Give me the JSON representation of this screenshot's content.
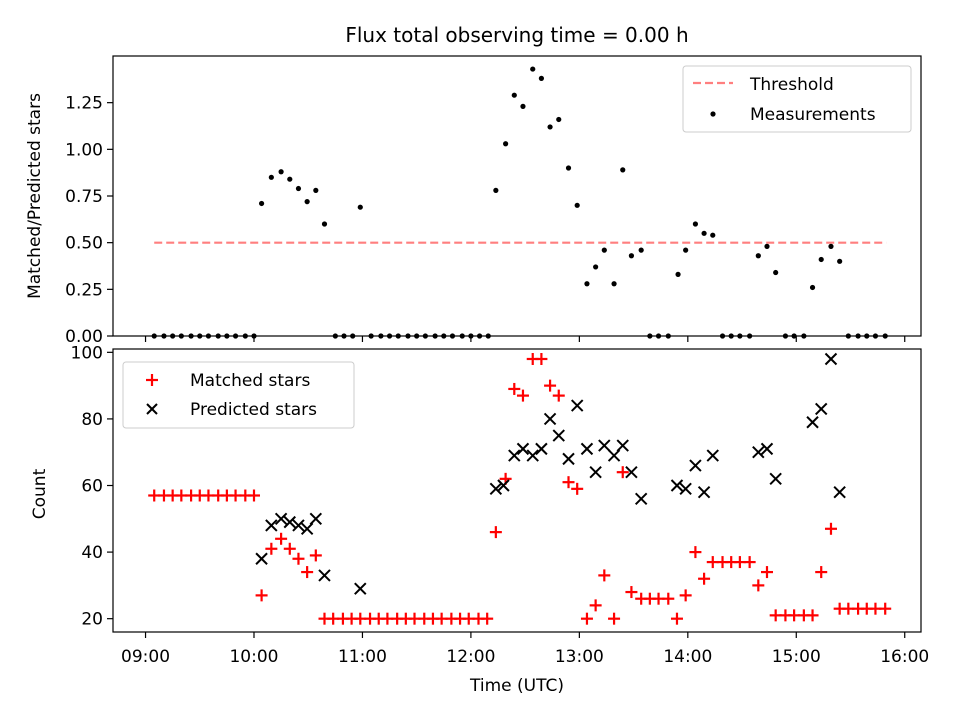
{
  "chart_data": [
    {
      "type": "scatter",
      "title": "Flux total observing time = 0.00 h",
      "ylabel": "Matched/Predicted stars",
      "xlabel": "",
      "xlim": [
        8.7,
        16.15
      ],
      "ylim": [
        0,
        1.5
      ],
      "yticks": [
        0.0,
        0.25,
        0.5,
        0.75,
        1.0,
        1.25
      ],
      "ytick_labels": [
        "0.00",
        "0.25",
        "0.50",
        "0.75",
        "1.00",
        "1.25"
      ],
      "threshold": {
        "name": "Threshold",
        "value": 0.5,
        "x": [
          9.08,
          15.83
        ],
        "color": "#ff7f7f"
      },
      "legend": {
        "location": "upper right",
        "entries": [
          "Threshold",
          "Measurements"
        ]
      },
      "series": [
        {
          "name": "Measurements",
          "color": "#000000",
          "marker": "dot",
          "points": [
            [
              9.08,
              0
            ],
            [
              9.17,
              0
            ],
            [
              9.25,
              0
            ],
            [
              9.33,
              0
            ],
            [
              9.42,
              0
            ],
            [
              9.5,
              0
            ],
            [
              9.58,
              0
            ],
            [
              9.67,
              0
            ],
            [
              9.75,
              0
            ],
            [
              9.83,
              0
            ],
            [
              9.92,
              0
            ],
            [
              10.0,
              0
            ],
            [
              10.07,
              0.71
            ],
            [
              10.16,
              0.85
            ],
            [
              10.25,
              0.88
            ],
            [
              10.33,
              0.84
            ],
            [
              10.41,
              0.79
            ],
            [
              10.49,
              0.72
            ],
            [
              10.57,
              0.78
            ],
            [
              10.65,
              0.6
            ],
            [
              10.75,
              0
            ],
            [
              10.83,
              0
            ],
            [
              10.91,
              0
            ],
            [
              10.98,
              0.69
            ],
            [
              11.08,
              0
            ],
            [
              11.17,
              0
            ],
            [
              11.25,
              0
            ],
            [
              11.33,
              0
            ],
            [
              11.42,
              0
            ],
            [
              11.5,
              0
            ],
            [
              11.58,
              0
            ],
            [
              11.67,
              0
            ],
            [
              11.75,
              0
            ],
            [
              11.83,
              0
            ],
            [
              11.92,
              0
            ],
            [
              12.0,
              0
            ],
            [
              12.08,
              0
            ],
            [
              12.16,
              0
            ],
            [
              12.23,
              0.78
            ],
            [
              12.32,
              1.03
            ],
            [
              12.4,
              1.29
            ],
            [
              12.48,
              1.23
            ],
            [
              12.57,
              1.43
            ],
            [
              12.65,
              1.38
            ],
            [
              12.73,
              1.12
            ],
            [
              12.81,
              1.16
            ],
            [
              12.9,
              0.9
            ],
            [
              12.98,
              0.7
            ],
            [
              13.07,
              0.28
            ],
            [
              13.15,
              0.37
            ],
            [
              13.23,
              0.46
            ],
            [
              13.32,
              0.28
            ],
            [
              13.4,
              0.89
            ],
            [
              13.48,
              0.43
            ],
            [
              13.57,
              0.46
            ],
            [
              13.65,
              0
            ],
            [
              13.73,
              0
            ],
            [
              13.82,
              0
            ],
            [
              13.91,
              0.33
            ],
            [
              13.98,
              0.46
            ],
            [
              14.07,
              0.6
            ],
            [
              14.15,
              0.55
            ],
            [
              14.23,
              0.54
            ],
            [
              14.32,
              0
            ],
            [
              14.4,
              0
            ],
            [
              14.48,
              0
            ],
            [
              14.57,
              0
            ],
            [
              14.65,
              0.43
            ],
            [
              14.73,
              0.48
            ],
            [
              14.81,
              0.34
            ],
            [
              14.9,
              0
            ],
            [
              14.98,
              0
            ],
            [
              15.07,
              0
            ],
            [
              15.15,
              0.26
            ],
            [
              15.23,
              0.41
            ],
            [
              15.32,
              0.48
            ],
            [
              15.4,
              0.4
            ],
            [
              15.48,
              0
            ],
            [
              15.57,
              0
            ],
            [
              15.65,
              0
            ],
            [
              15.73,
              0
            ],
            [
              15.82,
              0
            ]
          ]
        }
      ]
    },
    {
      "type": "scatter",
      "title": "",
      "xlabel": "Time (UTC)",
      "ylabel": "Count",
      "xlim": [
        8.7,
        16.15
      ],
      "ylim": [
        16,
        101
      ],
      "xticks": [
        9,
        10,
        11,
        12,
        13,
        14,
        15,
        16
      ],
      "xtick_labels": [
        "09:00",
        "10:00",
        "11:00",
        "12:00",
        "13:00",
        "14:00",
        "15:00",
        "16:00"
      ],
      "yticks": [
        20,
        40,
        60,
        80,
        100
      ],
      "ytick_labels": [
        "20",
        "40",
        "60",
        "80",
        "100"
      ],
      "legend": {
        "location": "upper left",
        "entries": [
          "Matched stars",
          "Predicted stars"
        ]
      },
      "series": [
        {
          "name": "Matched stars",
          "color": "#ff0000",
          "marker": "plus",
          "points": [
            [
              9.08,
              57
            ],
            [
              9.17,
              57
            ],
            [
              9.25,
              57
            ],
            [
              9.33,
              57
            ],
            [
              9.42,
              57
            ],
            [
              9.5,
              57
            ],
            [
              9.58,
              57
            ],
            [
              9.67,
              57
            ],
            [
              9.75,
              57
            ],
            [
              9.83,
              57
            ],
            [
              9.92,
              57
            ],
            [
              10.0,
              57
            ],
            [
              10.07,
              27
            ],
            [
              10.16,
              41
            ],
            [
              10.25,
              44
            ],
            [
              10.33,
              41
            ],
            [
              10.41,
              38
            ],
            [
              10.49,
              34
            ],
            [
              10.57,
              39
            ],
            [
              10.65,
              20
            ],
            [
              10.73,
              20
            ],
            [
              10.82,
              20
            ],
            [
              10.9,
              20
            ],
            [
              10.98,
              20
            ],
            [
              11.07,
              20
            ],
            [
              11.15,
              20
            ],
            [
              11.23,
              20
            ],
            [
              11.32,
              20
            ],
            [
              11.4,
              20
            ],
            [
              11.48,
              20
            ],
            [
              11.57,
              20
            ],
            [
              11.65,
              20
            ],
            [
              11.73,
              20
            ],
            [
              11.82,
              20
            ],
            [
              11.9,
              20
            ],
            [
              11.98,
              20
            ],
            [
              12.07,
              20
            ],
            [
              12.15,
              20
            ],
            [
              12.23,
              46
            ],
            [
              12.32,
              62
            ],
            [
              12.4,
              89
            ],
            [
              12.48,
              87
            ],
            [
              12.57,
              98
            ],
            [
              12.65,
              98
            ],
            [
              12.73,
              90
            ],
            [
              12.81,
              87
            ],
            [
              12.9,
              61
            ],
            [
              12.98,
              59
            ],
            [
              13.07,
              20
            ],
            [
              13.15,
              24
            ],
            [
              13.23,
              33
            ],
            [
              13.32,
              20
            ],
            [
              13.4,
              64
            ],
            [
              13.48,
              28
            ],
            [
              13.57,
              26
            ],
            [
              13.65,
              26
            ],
            [
              13.73,
              26
            ],
            [
              13.82,
              26
            ],
            [
              13.9,
              20
            ],
            [
              13.98,
              27
            ],
            [
              14.07,
              40
            ],
            [
              14.15,
              32
            ],
            [
              14.23,
              37
            ],
            [
              14.32,
              37
            ],
            [
              14.4,
              37
            ],
            [
              14.48,
              37
            ],
            [
              14.57,
              37
            ],
            [
              14.65,
              30
            ],
            [
              14.73,
              34
            ],
            [
              14.81,
              21
            ],
            [
              14.9,
              21
            ],
            [
              14.98,
              21
            ],
            [
              15.07,
              21
            ],
            [
              15.15,
              21
            ],
            [
              15.23,
              34
            ],
            [
              15.32,
              47
            ],
            [
              15.4,
              23
            ],
            [
              15.48,
              23
            ],
            [
              15.57,
              23
            ],
            [
              15.65,
              23
            ],
            [
              15.73,
              23
            ],
            [
              15.82,
              23
            ]
          ]
        },
        {
          "name": "Predicted stars",
          "color": "#000000",
          "marker": "x",
          "points": [
            [
              10.07,
              38
            ],
            [
              10.16,
              48
            ],
            [
              10.25,
              50
            ],
            [
              10.33,
              49
            ],
            [
              10.41,
              48
            ],
            [
              10.49,
              47
            ],
            [
              10.57,
              50
            ],
            [
              10.65,
              33
            ],
            [
              10.98,
              29
            ],
            [
              12.23,
              59
            ],
            [
              12.3,
              60
            ],
            [
              12.4,
              69
            ],
            [
              12.48,
              71
            ],
            [
              12.57,
              69
            ],
            [
              12.65,
              71
            ],
            [
              12.73,
              80
            ],
            [
              12.81,
              75
            ],
            [
              12.9,
              68
            ],
            [
              12.98,
              84
            ],
            [
              13.07,
              71
            ],
            [
              13.15,
              64
            ],
            [
              13.23,
              72
            ],
            [
              13.32,
              69
            ],
            [
              13.4,
              72
            ],
            [
              13.48,
              64
            ],
            [
              13.57,
              56
            ],
            [
              13.9,
              60
            ],
            [
              13.98,
              59
            ],
            [
              14.07,
              66
            ],
            [
              14.15,
              58
            ],
            [
              14.23,
              69
            ],
            [
              14.65,
              70
            ],
            [
              14.73,
              71
            ],
            [
              14.81,
              62
            ],
            [
              15.15,
              79
            ],
            [
              15.23,
              83
            ],
            [
              15.32,
              98
            ],
            [
              15.4,
              58
            ]
          ]
        }
      ]
    }
  ]
}
